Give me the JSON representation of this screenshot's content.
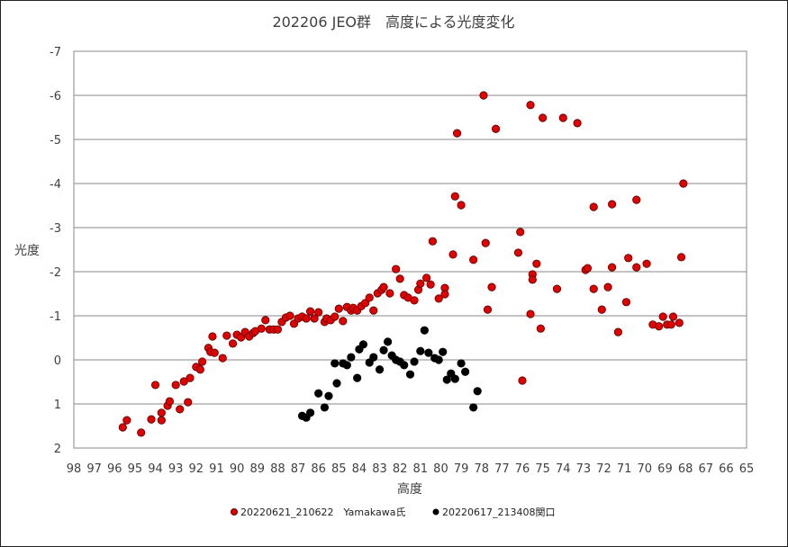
{
  "chart_data": {
    "type": "scatter",
    "title": "202206 JEO群　高度による光度変化",
    "xlabel": "高度",
    "ylabel": "光度",
    "xlim": [
      98,
      65
    ],
    "ylim": [
      2,
      -7
    ],
    "x_reversed": true,
    "y_reversed": true,
    "x_ticks": [
      98,
      97,
      96,
      95,
      94,
      93,
      92,
      91,
      90,
      89,
      88,
      87,
      86,
      85,
      84,
      83,
      82,
      81,
      80,
      79,
      78,
      77,
      76,
      75,
      74,
      73,
      72,
      71,
      70,
      69,
      68,
      67,
      66,
      65
    ],
    "y_ticks": [
      -7,
      -6,
      -5,
      -4,
      -3,
      -2,
      -1,
      0,
      1,
      2
    ],
    "grid": "horizontal",
    "legend_position": "bottom",
    "series": [
      {
        "name": "20220621_210622　Yamakawa氏",
        "color": "#e00000",
        "points": [
          [
            95.6,
            1.53
          ],
          [
            95.4,
            1.37
          ],
          [
            94.7,
            1.65
          ],
          [
            94.2,
            1.35
          ],
          [
            94.0,
            0.57
          ],
          [
            93.7,
            1.2
          ],
          [
            93.7,
            1.37
          ],
          [
            93.4,
            1.04
          ],
          [
            93.3,
            0.94
          ],
          [
            93.0,
            0.57
          ],
          [
            92.8,
            1.12
          ],
          [
            92.6,
            0.49
          ],
          [
            92.4,
            0.96
          ],
          [
            92.3,
            0.41
          ],
          [
            92.0,
            0.16
          ],
          [
            91.8,
            0.22
          ],
          [
            91.7,
            0.04
          ],
          [
            91.4,
            -0.27
          ],
          [
            91.3,
            -0.18
          ],
          [
            91.2,
            -0.53
          ],
          [
            91.1,
            -0.16
          ],
          [
            90.7,
            -0.04
          ],
          [
            90.5,
            -0.55
          ],
          [
            90.2,
            -0.37
          ],
          [
            90.0,
            -0.57
          ],
          [
            89.8,
            -0.51
          ],
          [
            89.6,
            -0.63
          ],
          [
            89.4,
            -0.53
          ],
          [
            89.2,
            -0.61
          ],
          [
            89.1,
            -0.65
          ],
          [
            88.8,
            -0.71
          ],
          [
            88.6,
            -0.9
          ],
          [
            88.4,
            -0.69
          ],
          [
            88.2,
            -0.69
          ],
          [
            88.0,
            -0.69
          ],
          [
            87.8,
            -0.86
          ],
          [
            87.6,
            -0.96
          ],
          [
            87.4,
            -1.0
          ],
          [
            87.2,
            -0.82
          ],
          [
            87.0,
            -0.94
          ],
          [
            86.8,
            -0.98
          ],
          [
            86.6,
            -0.94
          ],
          [
            86.4,
            -1.1
          ],
          [
            86.2,
            -0.94
          ],
          [
            86.0,
            -1.08
          ],
          [
            85.7,
            -0.86
          ],
          [
            85.6,
            -0.94
          ],
          [
            85.4,
            -0.9
          ],
          [
            85.2,
            -0.98
          ],
          [
            85.0,
            -1.16
          ],
          [
            84.8,
            -0.88
          ],
          [
            84.6,
            -1.2
          ],
          [
            84.4,
            -1.12
          ],
          [
            84.3,
            -1.18
          ],
          [
            84.1,
            -1.12
          ],
          [
            83.9,
            -1.22
          ],
          [
            83.7,
            -1.29
          ],
          [
            83.5,
            -1.41
          ],
          [
            83.3,
            -1.12
          ],
          [
            83.1,
            -1.51
          ],
          [
            82.9,
            -1.59
          ],
          [
            82.8,
            -1.65
          ],
          [
            82.5,
            -1.51
          ],
          [
            82.2,
            -2.06
          ],
          [
            82.0,
            -1.84
          ],
          [
            81.8,
            -1.47
          ],
          [
            81.6,
            -1.41
          ],
          [
            81.3,
            -1.35
          ],
          [
            81.1,
            -1.59
          ],
          [
            81.0,
            -1.73
          ],
          [
            80.7,
            -1.86
          ],
          [
            80.5,
            -1.71
          ],
          [
            80.4,
            -2.69
          ],
          [
            80.1,
            -1.39
          ],
          [
            79.8,
            -1.63
          ],
          [
            79.8,
            -1.49
          ],
          [
            79.4,
            -2.39
          ],
          [
            79.3,
            -3.71
          ],
          [
            79.2,
            -5.14
          ],
          [
            79.0,
            -3.51
          ],
          [
            78.4,
            -2.27
          ],
          [
            77.9,
            -6.0
          ],
          [
            77.8,
            -2.65
          ],
          [
            77.7,
            -1.14
          ],
          [
            77.5,
            -1.65
          ],
          [
            77.3,
            -5.24
          ],
          [
            76.2,
            -2.43
          ],
          [
            76.1,
            -2.9
          ],
          [
            76.0,
            0.47
          ],
          [
            75.6,
            -5.78
          ],
          [
            75.6,
            -1.04
          ],
          [
            75.5,
            -1.94
          ],
          [
            75.5,
            -1.82
          ],
          [
            75.3,
            -2.18
          ],
          [
            75.1,
            -0.71
          ],
          [
            75.0,
            -5.49
          ],
          [
            74.3,
            -1.61
          ],
          [
            74.0,
            -5.49
          ],
          [
            73.3,
            -5.37
          ],
          [
            72.9,
            -2.04
          ],
          [
            72.8,
            -2.08
          ],
          [
            72.5,
            -3.47
          ],
          [
            72.5,
            -1.61
          ],
          [
            72.1,
            -1.14
          ],
          [
            71.8,
            -1.65
          ],
          [
            71.6,
            -3.53
          ],
          [
            71.6,
            -2.1
          ],
          [
            71.3,
            -0.63
          ],
          [
            70.9,
            -1.31
          ],
          [
            70.8,
            -2.31
          ],
          [
            70.4,
            -3.63
          ],
          [
            70.4,
            -2.1
          ],
          [
            69.9,
            -2.18
          ],
          [
            69.6,
            -0.8
          ],
          [
            69.3,
            -0.76
          ],
          [
            69.1,
            -0.98
          ],
          [
            68.9,
            -0.8
          ],
          [
            68.7,
            -0.8
          ],
          [
            68.6,
            -0.98
          ],
          [
            68.3,
            -0.84
          ],
          [
            68.2,
            -2.33
          ],
          [
            68.1,
            -4.0
          ]
        ]
      },
      {
        "name": "20220617_213408関口",
        "color": "#000000",
        "points": [
          [
            86.8,
            1.27
          ],
          [
            86.6,
            1.31
          ],
          [
            86.4,
            1.2
          ],
          [
            86.0,
            0.76
          ],
          [
            85.7,
            1.08
          ],
          [
            85.5,
            0.82
          ],
          [
            85.2,
            0.08
          ],
          [
            85.1,
            0.53
          ],
          [
            84.8,
            0.08
          ],
          [
            84.6,
            0.12
          ],
          [
            84.4,
            -0.06
          ],
          [
            84.1,
            0.41
          ],
          [
            84.0,
            -0.24
          ],
          [
            83.8,
            -0.35
          ],
          [
            83.5,
            0.06
          ],
          [
            83.3,
            -0.06
          ],
          [
            83.0,
            0.22
          ],
          [
            82.8,
            -0.22
          ],
          [
            82.6,
            -0.41
          ],
          [
            82.4,
            -0.1
          ],
          [
            82.2,
            0.0
          ],
          [
            82.0,
            0.04
          ],
          [
            81.8,
            0.12
          ],
          [
            81.5,
            0.33
          ],
          [
            81.3,
            0.04
          ],
          [
            81.0,
            -0.2
          ],
          [
            80.8,
            -0.67
          ],
          [
            80.6,
            -0.16
          ],
          [
            80.3,
            -0.04
          ],
          [
            80.1,
            0.0
          ],
          [
            79.9,
            -0.18
          ],
          [
            79.7,
            0.45
          ],
          [
            79.5,
            0.31
          ],
          [
            79.3,
            0.43
          ],
          [
            79.0,
            0.08
          ],
          [
            78.8,
            0.27
          ],
          [
            78.4,
            1.08
          ],
          [
            78.2,
            0.71
          ]
        ]
      }
    ]
  }
}
